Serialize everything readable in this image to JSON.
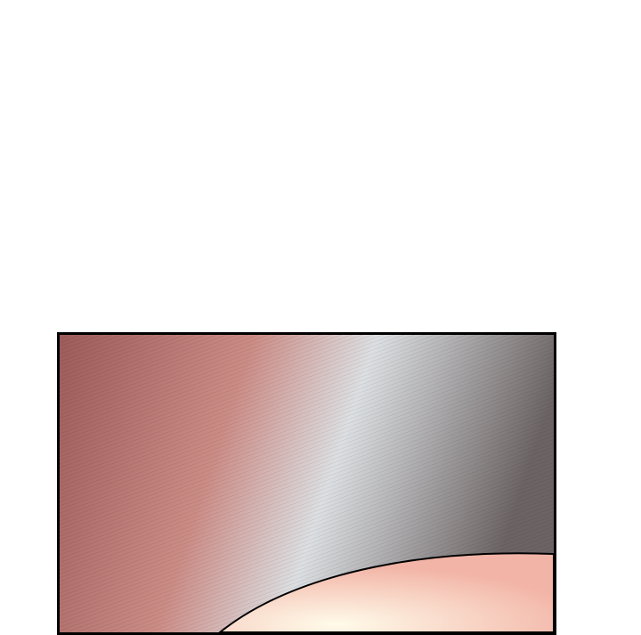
{
  "panel": {
    "colors": {
      "border": "#000000",
      "bg_left": "#9c5c5a",
      "bg_mid_left": "#cc8c86",
      "bg_center": "#dcdfe2",
      "bg_right": "#6c6464",
      "highlight_center": "#fffbea",
      "highlight_edge": "#f2b4a6"
    }
  }
}
